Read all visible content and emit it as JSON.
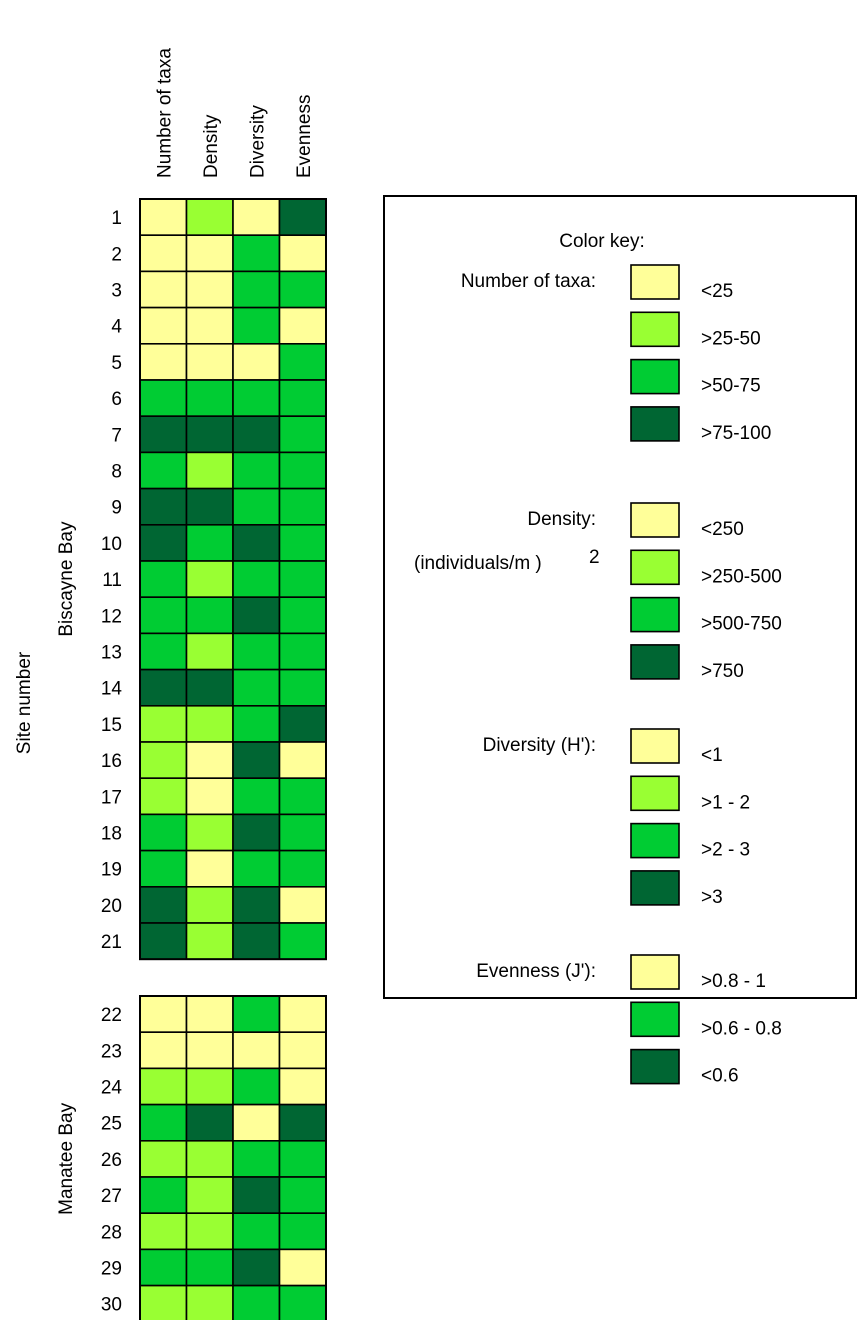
{
  "chart_data": {
    "type": "heatmap",
    "columns": [
      "Number of taxa",
      "Density",
      "Diversity",
      "Evenness"
    ],
    "y_axis_label": "Site number",
    "colors": {
      "cat1": "#ffff99",
      "cat2": "#99ff33",
      "cat3": "#00cc33",
      "cat4": "#006633"
    },
    "groups": [
      {
        "name": "Biscayne Bay",
        "sites": [
          {
            "site": "1",
            "cats": [
              1,
              2,
              1,
              4
            ]
          },
          {
            "site": "2",
            "cats": [
              1,
              1,
              3,
              1
            ]
          },
          {
            "site": "3",
            "cats": [
              1,
              1,
              3,
              3
            ]
          },
          {
            "site": "4",
            "cats": [
              1,
              1,
              3,
              1
            ]
          },
          {
            "site": "5",
            "cats": [
              1,
              1,
              1,
              3
            ]
          },
          {
            "site": "6",
            "cats": [
              3,
              3,
              3,
              3
            ]
          },
          {
            "site": "7",
            "cats": [
              4,
              4,
              4,
              3
            ]
          },
          {
            "site": "8",
            "cats": [
              3,
              2,
              3,
              3
            ]
          },
          {
            "site": "9",
            "cats": [
              4,
              4,
              3,
              3
            ]
          },
          {
            "site": "10",
            "cats": [
              4,
              3,
              4,
              3
            ]
          },
          {
            "site": "11",
            "cats": [
              3,
              2,
              3,
              3
            ]
          },
          {
            "site": "12",
            "cats": [
              3,
              3,
              4,
              3
            ]
          },
          {
            "site": "13",
            "cats": [
              3,
              2,
              3,
              3
            ]
          },
          {
            "site": "14",
            "cats": [
              4,
              4,
              3,
              3
            ]
          },
          {
            "site": "15",
            "cats": [
              2,
              2,
              3,
              4
            ]
          },
          {
            "site": "16",
            "cats": [
              2,
              1,
              4,
              1
            ]
          },
          {
            "site": "17",
            "cats": [
              2,
              1,
              3,
              3
            ]
          },
          {
            "site": "18",
            "cats": [
              3,
              2,
              4,
              3
            ]
          },
          {
            "site": "19",
            "cats": [
              3,
              1,
              3,
              3
            ]
          },
          {
            "site": "20",
            "cats": [
              4,
              2,
              4,
              1
            ]
          },
          {
            "site": "21",
            "cats": [
              4,
              2,
              4,
              3
            ]
          }
        ]
      },
      {
        "name": "Manatee Bay",
        "sites": [
          {
            "site": "22",
            "cats": [
              1,
              1,
              3,
              1
            ]
          },
          {
            "site": "23",
            "cats": [
              1,
              1,
              1,
              1
            ]
          },
          {
            "site": "24",
            "cats": [
              2,
              2,
              3,
              1
            ]
          },
          {
            "site": "25",
            "cats": [
              3,
              4,
              1,
              4
            ]
          },
          {
            "site": "26",
            "cats": [
              2,
              2,
              3,
              3
            ]
          },
          {
            "site": "27",
            "cats": [
              3,
              2,
              4,
              3
            ]
          },
          {
            "site": "28",
            "cats": [
              2,
              2,
              3,
              3
            ]
          },
          {
            "site": "29",
            "cats": [
              3,
              3,
              4,
              1
            ]
          },
          {
            "site": "30",
            "cats": [
              2,
              2,
              3,
              3
            ]
          }
        ]
      }
    ],
    "legend": {
      "title": "Color key:",
      "sections": [
        {
          "label": "Number of taxa:",
          "label2": "",
          "items": [
            {
              "cat": 1,
              "text": "<25"
            },
            {
              "cat": 2,
              "text": ">25-50"
            },
            {
              "cat": 3,
              "text": ">50-75"
            },
            {
              "cat": 4,
              "text": ">75-100"
            }
          ]
        },
        {
          "label": "Density:",
          "label2": "(individuals/m  )",
          "label2_sup": "2",
          "items": [
            {
              "cat": 1,
              "text": "<250"
            },
            {
              "cat": 2,
              "text": ">250-500"
            },
            {
              "cat": 3,
              "text": ">500-750"
            },
            {
              "cat": 4,
              "text": ">750"
            }
          ]
        },
        {
          "label": "Diversity (H'):",
          "label2": "",
          "items": [
            {
              "cat": 1,
              "text": "<1"
            },
            {
              "cat": 2,
              "text": ">1 - 2"
            },
            {
              "cat": 3,
              "text": ">2 - 3"
            },
            {
              "cat": 4,
              "text": ">3"
            }
          ]
        },
        {
          "label": "Evenness (J'):",
          "label2": "",
          "items": [
            {
              "cat": 1,
              "text": ">0.8 - 1"
            },
            {
              "cat": 3,
              "text": ">0.6 - 0.8"
            },
            {
              "cat": 4,
              "text": "<0.6"
            }
          ]
        }
      ]
    }
  }
}
